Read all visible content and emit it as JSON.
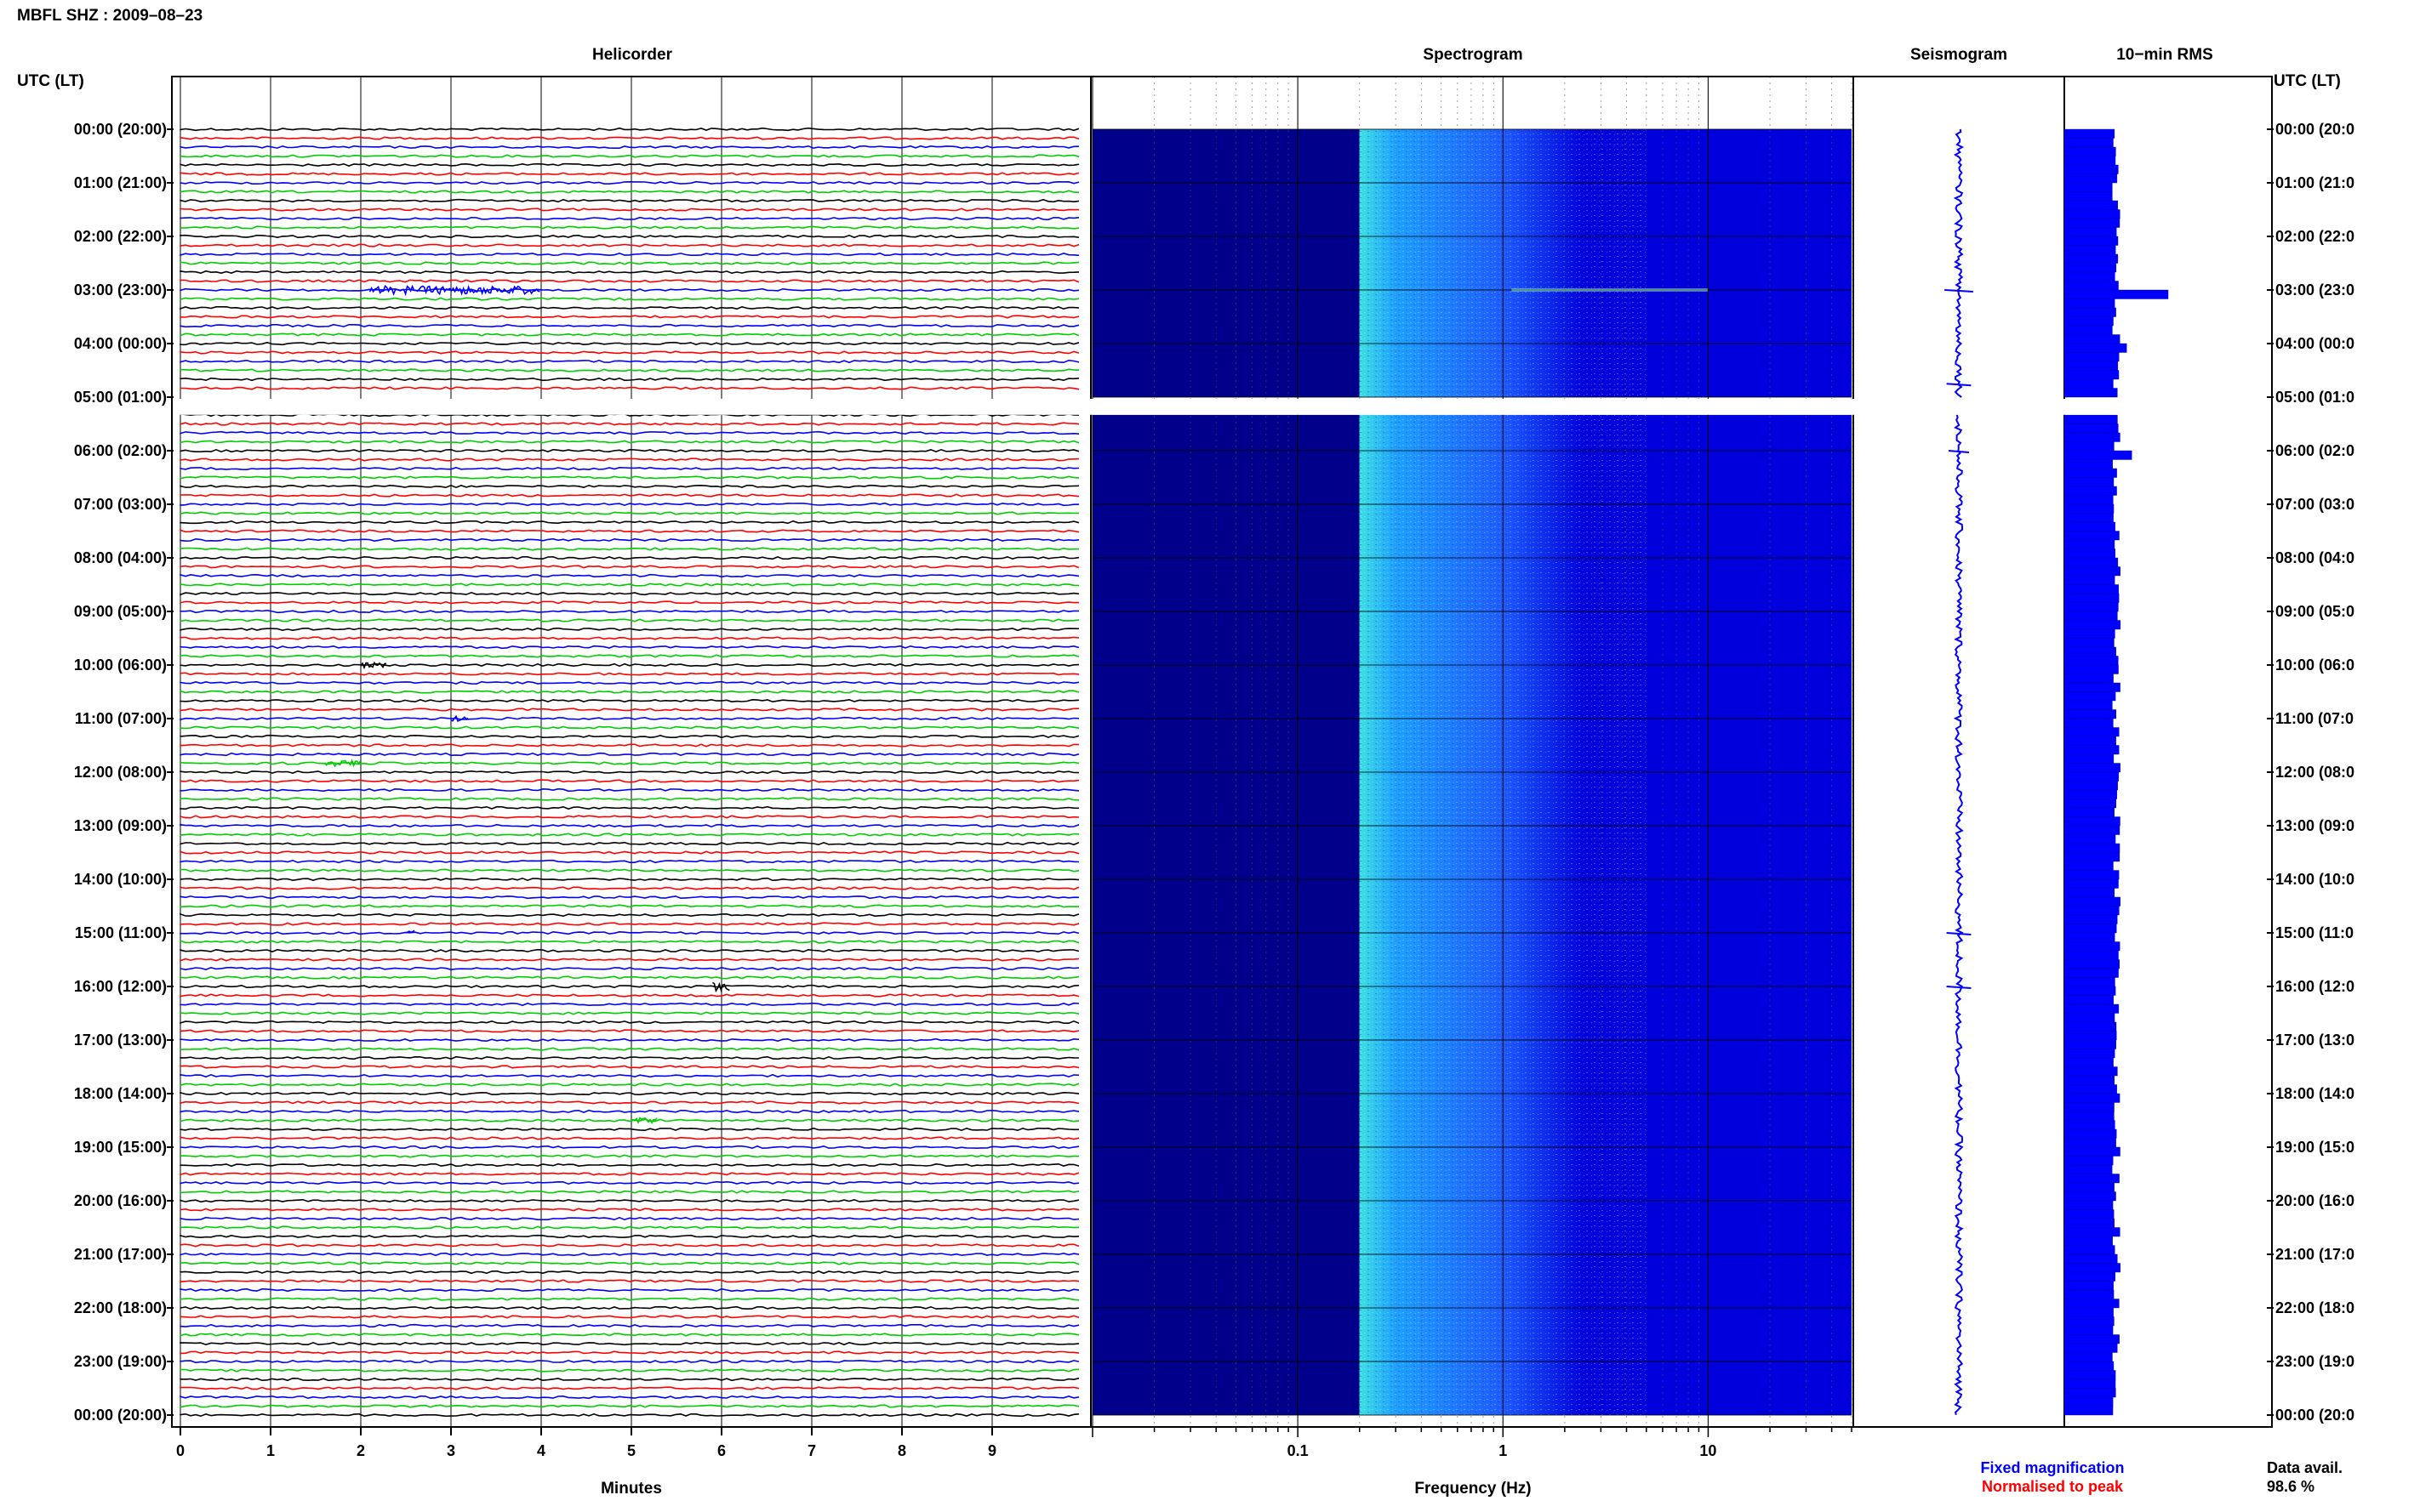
{
  "header": {
    "title": "MBFL SHZ : 2009–08–23"
  },
  "left_axis": {
    "label": "UTC (LT)"
  },
  "right_axis": {
    "label": "UTC (LT)"
  },
  "hours": [
    "00:00 (20:00)",
    "01:00 (21:00)",
    "02:00 (22:00)",
    "03:00 (23:00)",
    "04:00 (00:00)",
    "05:00 (01:00)",
    "06:00 (02:00)",
    "07:00 (03:00)",
    "08:00 (04:00)",
    "09:00 (05:00)",
    "10:00 (06:00)",
    "11:00 (07:00)",
    "12:00 (08:00)",
    "13:00 (09:00)",
    "14:00 (10:00)",
    "15:00 (11:00)",
    "16:00 (12:00)",
    "17:00 (13:00)",
    "18:00 (14:00)",
    "19:00 (15:00)",
    "20:00 (16:00)",
    "21:00 (17:00)",
    "22:00 (18:00)",
    "23:00 (19:00)",
    "00:00 (20:00)"
  ],
  "right_hours": [
    "00:00 (20:0",
    "01:00 (21:0",
    "02:00 (22:0",
    "03:00 (23:0",
    "04:00 (00:0",
    "05:00 (01:0",
    "06:00 (02:0",
    "07:00 (03:0",
    "08:00 (04:0",
    "09:00 (05:0",
    "10:00 (06:0",
    "11:00 (07:0",
    "12:00 (08:0",
    "13:00 (09:0",
    "14:00 (10:0",
    "15:00 (11:0",
    "16:00 (12:0",
    "17:00 (13:0",
    "18:00 (14:0",
    "19:00 (15:0",
    "20:00 (16:0",
    "21:00 (17:0",
    "22:00 (18:0",
    "23:00 (19:0",
    "00:00 (20:0"
  ],
  "gap": {
    "start_hour": 5.0,
    "end_hour": 5.33
  },
  "legend": {
    "fixed": "Fixed magnification",
    "normalised": "Normalised to peak",
    "fixed_color": "#0000ff",
    "normalised_color": "#ff0000"
  },
  "availability": {
    "label": "Data avail.",
    "value": "98.6 %"
  },
  "chart_data": [
    {
      "type": "line",
      "title": "Helicorder",
      "xlabel": "Minutes",
      "x_ticks": [
        "0",
        "1",
        "2",
        "3",
        "4",
        "5",
        "6",
        "7",
        "8",
        "9"
      ],
      "xlim": [
        0,
        10
      ],
      "rows_per_hour": 6,
      "trace_colors": [
        "#000000",
        "#ff0000",
        "#0000ff",
        "#00cc00"
      ],
      "events": [
        {
          "hour": 3.0,
          "start_min": 2.1,
          "end_min": 4.0,
          "amp": 0.9
        },
        {
          "hour": 10.0,
          "start_min": 2.0,
          "end_min": 2.3,
          "amp": 0.6
        },
        {
          "hour": 11.0,
          "start_min": 3.0,
          "end_min": 3.2,
          "amp": 0.6
        },
        {
          "hour": 11.83,
          "start_min": 1.6,
          "end_min": 2.0,
          "amp": 0.7
        },
        {
          "hour": 15.0,
          "start_min": 2.5,
          "end_min": 2.6,
          "amp": 0.8
        },
        {
          "hour": 16.0,
          "start_min": 5.9,
          "end_min": 6.1,
          "amp": 1.0
        },
        {
          "hour": 18.5,
          "start_min": 5.0,
          "end_min": 5.3,
          "amp": 0.6
        }
      ]
    },
    {
      "type": "heatmap",
      "title": "Spectrogram",
      "xlabel": "Frequency (Hz)",
      "x_scale": "log",
      "xlim": [
        0.01,
        50
      ],
      "x_ticks": [
        "0.1",
        "1",
        "10"
      ],
      "colormap": [
        "#00008b",
        "#0000dd",
        "#1e5bff",
        "#1ea0ff",
        "#3ee0e0",
        "#8ef0b0"
      ],
      "bands": [
        {
          "f_from": 0.01,
          "f_to": 0.2,
          "level": 0
        },
        {
          "f_from": 0.2,
          "f_to": 0.3,
          "level": 4
        },
        {
          "f_from": 0.3,
          "f_to": 1.0,
          "level": 3
        },
        {
          "f_from": 1.0,
          "f_to": 2.5,
          "level": 2
        },
        {
          "f_from": 2.5,
          "f_to": 50,
          "level": 1
        }
      ],
      "tonal_lines": [
        {
          "hour": 3.0,
          "f_from": 1.1,
          "f_to": 10,
          "color": "#8ef0d0"
        }
      ]
    },
    {
      "type": "line",
      "title": "Seismogram",
      "series": [
        {
          "name": "Fixed magnification",
          "color": "#0000ff"
        }
      ],
      "spikes": [
        {
          "hour": 3.0,
          "amp": 0.7
        },
        {
          "hour": 4.75,
          "amp": 0.6
        },
        {
          "hour": 6.0,
          "amp": 0.5
        },
        {
          "hour": 15.0,
          "amp": 0.6
        },
        {
          "hour": 16.0,
          "amp": 0.6
        }
      ]
    },
    {
      "type": "bar",
      "title": "10−min RMS",
      "orientation": "horizontal",
      "color": "#0000ff",
      "base_value": 1.0,
      "xlim": [
        0,
        4
      ],
      "peaks": [
        {
          "hour": 3.0,
          "value": 2.0
        },
        {
          "hour": 6.0,
          "value": 1.3
        },
        {
          "hour": 4.0,
          "value": 1.2
        }
      ]
    }
  ]
}
